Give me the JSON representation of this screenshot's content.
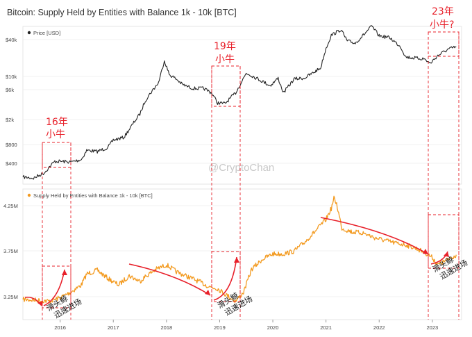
{
  "chart_data": {
    "title": "Bitcoin: Supply Held by Entities with Balance 1k - 10k [BTC]",
    "watermark": "@CryptoChan",
    "x_ticks": [
      "2016",
      "2017",
      "2018",
      "2019",
      "2020",
      "2021",
      "2022",
      "2023"
    ],
    "panels": [
      {
        "type": "line",
        "scale": "log",
        "legend": "Price [USD]",
        "color": "#222222",
        "y_ticks": [
          "$40k",
          "$10k",
          "$6k",
          "$2k",
          "$800",
          "$400"
        ],
        "series": [
          {
            "name": "Price [USD]",
            "x": [
              2015.3,
              2015.5,
              2015.7,
              2015.8,
              2015.9,
              2016.0,
              2016.2,
              2016.4,
              2016.5,
              2016.7,
              2016.9,
              2017.0,
              2017.2,
              2017.4,
              2017.5,
              2017.6,
              2017.7,
              2017.85,
              2017.96,
              2018.05,
              2018.2,
              2018.3,
              2018.5,
              2018.7,
              2018.85,
              2018.96,
              2019.1,
              2019.3,
              2019.5,
              2019.6,
              2019.8,
              2019.95,
              2020.1,
              2020.2,
              2020.4,
              2020.6,
              2020.75,
              2020.9,
              2021.0,
              2021.1,
              2021.28,
              2021.4,
              2021.55,
              2021.7,
              2021.86,
              2022.0,
              2022.2,
              2022.4,
              2022.5,
              2022.7,
              2022.85,
              2022.96,
              2023.1,
              2023.3,
              2023.45
            ],
            "y": [
              240,
              230,
              280,
              350,
              430,
              430,
              420,
              460,
              650,
              620,
              720,
              950,
              1050,
              1900,
              2500,
              4100,
              5500,
              8000,
              18500,
              11000,
              9000,
              7500,
              6500,
              6500,
              5500,
              3800,
              3700,
              5500,
              11500,
              10500,
              8500,
              7200,
              9500,
              5500,
              9200,
              9600,
              11500,
              14000,
              29000,
              47000,
              58000,
              38000,
              35000,
              47000,
              66000,
              46000,
              43000,
              31000,
              21000,
              20000,
              19500,
              16500,
              22000,
              28000,
              30500
            ]
          }
        ]
      },
      {
        "type": "line",
        "legend": "Supply Held by Entities with Balance 1k - 10k [BTC]",
        "color": "#f39a1f",
        "y_ticks": [
          "4.25M",
          "3.75M",
          "3.25M"
        ],
        "series": [
          {
            "name": "Supply Held by Entities with Balance 1k - 10k [BTC]",
            "x": [
              2015.3,
              2015.6,
              2015.8,
              2016.0,
              2016.2,
              2016.4,
              2016.5,
              2016.7,
              2016.9,
              2017.1,
              2017.3,
              2017.5,
              2017.6,
              2017.8,
              2018.0,
              2018.2,
              2018.4,
              2018.6,
              2018.8,
              2018.96,
              2019.1,
              2019.3,
              2019.45,
              2019.6,
              2019.8,
              2020.0,
              2020.2,
              2020.4,
              2020.6,
              2020.8,
              2021.0,
              2021.1,
              2021.15,
              2021.2,
              2021.3,
              2021.5,
              2021.7,
              2021.9,
              2022.1,
              2022.3,
              2022.5,
              2022.7,
              2022.9,
              2023.0,
              2023.1,
              2023.2,
              2023.3,
              2023.45
            ],
            "y": [
              3.22,
              3.21,
              3.2,
              3.24,
              3.3,
              3.38,
              3.5,
              3.54,
              3.45,
              3.38,
              3.48,
              3.42,
              3.47,
              3.55,
              3.6,
              3.52,
              3.47,
              3.42,
              3.36,
              3.34,
              3.28,
              3.2,
              3.3,
              3.55,
              3.66,
              3.72,
              3.72,
              3.75,
              3.85,
              3.97,
              4.1,
              4.22,
              4.33,
              4.27,
              4.0,
              3.96,
              3.95,
              3.9,
              3.87,
              3.84,
              3.82,
              3.78,
              3.72,
              3.68,
              3.6,
              3.63,
              3.66,
              3.71
            ]
          }
        ]
      }
    ],
    "annotations": {
      "labels_top": [
        "16年\n小牛",
        "19年\n小牛",
        "23年\n小牛?"
      ],
      "labels_bottom": [
        "滑头鲸\n迅速进场",
        "滑头鲸\n迅速进场",
        "滑头鲸\n迅速进场"
      ],
      "color": "#e8202a"
    }
  }
}
